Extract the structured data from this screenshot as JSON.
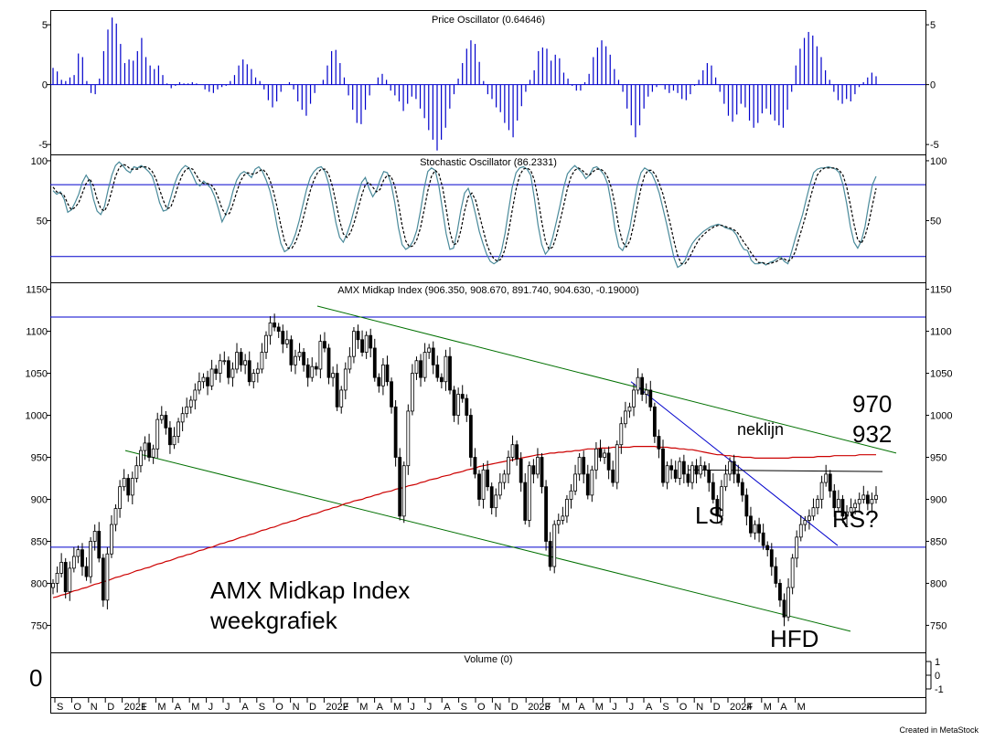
{
  "chart_data": [
    {
      "type": "bar",
      "title": "Price Oscillator (0.64646)",
      "yticks": [
        5,
        0,
        -5
      ],
      "ylim": [
        -5.6,
        6
      ],
      "color": "#0000cc",
      "values": [
        1.4,
        1.1,
        0.4,
        0.3,
        0.6,
        0.8,
        2.6,
        2.3,
        0.3,
        -0.7,
        -0.8,
        0.5,
        2.8,
        4.6,
        5.6,
        5.1,
        3.4,
        1.8,
        2.1,
        2.0,
        2.8,
        3.9,
        2.3,
        1.6,
        1.3,
        1.6,
        0.8,
        0.1,
        -0.3,
        -0.1,
        0.2,
        0.1,
        0.1,
        0.2,
        0.1,
        0.0,
        -0.4,
        -0.6,
        -0.7,
        -0.4,
        -0.2,
        -0.1,
        0.3,
        0.8,
        1.6,
        2.1,
        1.7,
        1.3,
        0.6,
        0.3,
        -0.4,
        -1.3,
        -1.9,
        -1.4,
        -0.6,
        0.0,
        0.2,
        -0.4,
        -1.4,
        -2.1,
        -2.6,
        -1.6,
        -0.7,
        0.0,
        0.4,
        1.6,
        2.8,
        2.9,
        1.8,
        0.6,
        -0.9,
        -2.1,
        -3.2,
        -3.3,
        -2.1,
        -0.9,
        0.0,
        0.6,
        0.9,
        0.4,
        -0.5,
        -0.9,
        -1.4,
        -2.2,
        -1.6,
        -1.0,
        -1.2,
        -2.0,
        -2.8,
        -3.8,
        -4.6,
        -5.5,
        -4.6,
        -3.6,
        -2.0,
        -0.8,
        0.5,
        1.8,
        3.0,
        3.7,
        3.4,
        1.9,
        0.3,
        -0.8,
        -1.2,
        -1.9,
        -2.3,
        -3.2,
        -3.8,
        -4.4,
        -3.0,
        -1.8,
        -0.6,
        0.4,
        1.2,
        2.8,
        3.1,
        3.0,
        2.0,
        2.5,
        2.2,
        1.0,
        0.5,
        -0.1,
        -0.5,
        -0.5,
        0.2,
        0.9,
        2.3,
        3.1,
        3.7,
        3.2,
        2.5,
        1.3,
        0.4,
        -0.6,
        -2.0,
        -3.4,
        -4.4,
        -3.4,
        -2.0,
        -1.0,
        -0.6,
        -0.2,
        0.0,
        -0.4,
        -0.7,
        -0.5,
        -0.7,
        -1.2,
        -1.3,
        -0.8,
        -0.1,
        0.4,
        1.2,
        1.8,
        1.6,
        0.6,
        -0.6,
        -1.6,
        -2.6,
        -3.1,
        -2.5,
        -1.6,
        -1.9,
        -3.0,
        -3.6,
        -3.2,
        -2.4,
        -2.0,
        -2.5,
        -3.0,
        -3.4,
        -3.6,
        -2.1,
        -0.6,
        1.6,
        3.0,
        3.9,
        4.4,
        4.1,
        3.2,
        2.3,
        1.2,
        0.4,
        -0.6,
        -1.3,
        -1.6,
        -1.2,
        -1.4,
        -0.8,
        -0.2,
        0.2,
        0.6,
        1.0,
        0.7
      ]
    },
    {
      "type": "line",
      "title": "Stochastic Oscillator (86.2331)",
      "yticks": [
        100,
        50
      ],
      "ylim": [
        0,
        103
      ],
      "reference_lines": [
        80,
        20
      ],
      "series": [
        {
          "color": "#4a8a9a",
          "dash": false,
          "values": [
            75,
            72,
            74,
            68,
            57,
            59,
            65,
            72,
            82,
            88,
            83,
            68,
            58,
            55,
            62,
            76,
            88,
            96,
            99,
            96,
            92,
            90,
            95,
            94,
            96,
            94,
            91,
            87,
            77,
            65,
            58,
            59,
            69,
            80,
            88,
            93,
            96,
            94,
            88,
            81,
            79,
            83,
            80,
            77,
            70,
            60,
            49,
            55,
            63,
            75,
            84,
            89,
            91,
            89,
            86,
            93,
            95,
            91,
            84,
            75,
            62,
            45,
            31,
            24,
            26,
            31,
            39,
            50,
            63,
            76,
            86,
            91,
            94,
            95,
            91,
            81,
            65,
            48,
            36,
            32,
            39,
            48,
            60,
            72,
            82,
            86,
            77,
            70,
            75,
            84,
            91,
            90,
            81,
            65,
            44,
            30,
            26,
            28,
            33,
            42,
            58,
            77,
            91,
            94,
            92,
            79,
            59,
            39,
            26,
            27,
            41,
            59,
            73,
            77,
            68,
            55,
            41,
            31,
            22,
            16,
            14,
            16,
            24,
            39,
            59,
            78,
            90,
            94,
            95,
            93,
            88,
            69,
            46,
            30,
            22,
            26,
            36,
            49,
            63,
            78,
            89,
            93,
            96,
            93,
            90,
            85,
            88,
            94,
            95,
            92,
            88,
            80,
            63,
            42,
            28,
            25,
            32,
            44,
            62,
            79,
            90,
            94,
            92,
            89,
            82,
            73,
            60,
            47,
            33,
            19,
            11,
            13,
            17,
            25,
            31,
            35,
            38,
            41,
            43,
            45,
            46,
            47,
            46,
            44,
            43,
            42,
            38,
            31,
            26,
            25,
            17,
            14,
            14,
            15,
            13,
            15,
            16,
            18,
            20,
            16,
            14,
            24,
            35,
            45,
            55,
            68,
            80,
            90,
            93,
            94,
            94,
            95,
            94,
            93,
            90,
            80,
            64,
            45,
            32,
            27,
            33,
            45,
            64,
            80,
            87
          ]
        },
        {
          "color": "#000000",
          "dash": true,
          "values": [
            78,
            74,
            73,
            71,
            64,
            59,
            61,
            65,
            73,
            81,
            85,
            79,
            68,
            60,
            58,
            64,
            75,
            87,
            94,
            97,
            96,
            93,
            93,
            93,
            95,
            95,
            94,
            91,
            85,
            76,
            67,
            60,
            61,
            69,
            79,
            87,
            92,
            94,
            93,
            88,
            83,
            81,
            81,
            80,
            76,
            69,
            60,
            55,
            56,
            64,
            74,
            83,
            88,
            90,
            89,
            89,
            91,
            93,
            90,
            84,
            74,
            61,
            46,
            33,
            27,
            27,
            32,
            40,
            51,
            63,
            75,
            84,
            90,
            93,
            93,
            89,
            79,
            65,
            50,
            39,
            36,
            40,
            49,
            60,
            71,
            80,
            82,
            78,
            74,
            76,
            84,
            88,
            87,
            79,
            64,
            46,
            33,
            28,
            29,
            34,
            44,
            59,
            75,
            87,
            92,
            89,
            78,
            60,
            41,
            30,
            31,
            42,
            58,
            70,
            73,
            67,
            55,
            43,
            31,
            23,
            18,
            16,
            18,
            26,
            41,
            59,
            76,
            88,
            93,
            94,
            92,
            84,
            68,
            49,
            33,
            26,
            28,
            37,
            50,
            63,
            77,
            87,
            92,
            94,
            92,
            89,
            88,
            91,
            93,
            93,
            91,
            86,
            77,
            62,
            44,
            32,
            28,
            33,
            46,
            62,
            77,
            88,
            92,
            92,
            88,
            81,
            72,
            60,
            47,
            33,
            21,
            14,
            14,
            18,
            24,
            30,
            35,
            38,
            41,
            43,
            45,
            46,
            46,
            45,
            44,
            43,
            41,
            37,
            32,
            28,
            23,
            19,
            15,
            15,
            14,
            14,
            15,
            16,
            18,
            18,
            16,
            18,
            24,
            35,
            45,
            56,
            68,
            79,
            88,
            92,
            94,
            94,
            94,
            94,
            92,
            88,
            78,
            63,
            47,
            34,
            31,
            37,
            48,
            63,
            77
          ]
        }
      ]
    },
    {
      "type": "candlestick",
      "title": "AMX Midkap Index (906.350, 908.670, 891.740, 904.630, -0.19000)",
      "yticks": [
        1150,
        1100,
        1050,
        1000,
        950,
        900,
        850,
        800,
        750
      ],
      "ylim": [
        720,
        1155
      ],
      "closes": [
        800,
        812,
        825,
        790,
        818,
        832,
        840,
        820,
        808,
        850,
        862,
        830,
        780,
        835,
        870,
        889,
        915,
        925,
        905,
        925,
        940,
        958,
        967,
        950,
        960,
        995,
        1000,
        985,
        965,
        975,
        992,
        1002,
        1010,
        1018,
        1030,
        1040,
        1045,
        1035,
        1055,
        1050,
        1065,
        1065,
        1045,
        1055,
        1075,
        1060,
        1065,
        1040,
        1050,
        1055,
        1075,
        1095,
        1110,
        1105,
        1100,
        1085,
        1090,
        1060,
        1070,
        1075,
        1060,
        1045,
        1058,
        1055,
        1088,
        1080,
        1045,
        1050,
        1010,
        1030,
        1055,
        1070,
        1100,
        1090,
        1075,
        1095,
        1080,
        1045,
        1035,
        1060,
        1040,
        1010,
        950,
        880,
        940,
        1005,
        1050,
        1065,
        1045,
        1075,
        1080,
        1060,
        1045,
        1040,
        1070,
        1030,
        1000,
        1025,
        1020,
        1000,
        950,
        930,
        900,
        935,
        915,
        890,
        905,
        920,
        930,
        950,
        965,
        948,
        920,
        875,
        940,
        930,
        950,
        915,
        850,
        820,
        870,
        875,
        880,
        900,
        910,
        930,
        950,
        930,
        905,
        935,
        960,
        950,
        955,
        935,
        920,
        965,
        990,
        1005,
        1010,
        1030,
        1045,
        1025,
        1030,
        1010,
        975,
        960,
        920,
        940,
        935,
        925,
        945,
        930,
        920,
        940,
        930,
        940,
        935,
        920,
        900,
        880,
        915,
        930,
        945,
        930,
        920,
        905,
        880,
        860,
        870,
        860,
        845,
        840,
        820,
        800,
        780,
        760,
        795,
        830,
        855,
        870,
        875,
        880,
        890,
        900,
        920,
        930,
        910,
        890,
        900,
        880,
        885,
        890,
        895,
        900,
        905,
        895,
        900,
        904.63
      ],
      "moving_average": [
        783,
        784,
        786,
        787,
        789,
        791,
        792,
        794,
        795,
        797,
        799,
        800,
        802,
        803,
        805,
        807,
        808,
        810,
        811,
        813,
        815,
        816,
        818,
        819,
        821,
        823,
        824,
        826,
        827,
        829,
        831,
        832,
        834,
        835,
        837,
        839,
        840,
        842,
        843,
        845,
        847,
        848,
        850,
        851,
        853,
        855,
        856,
        858,
        859,
        861,
        863,
        864,
        866,
        867,
        869,
        871,
        872,
        874,
        875,
        877,
        879,
        880,
        882,
        883,
        885,
        887,
        888,
        890,
        891,
        893,
        895,
        896,
        898,
        899,
        900,
        902,
        903,
        905,
        906,
        908,
        909,
        910,
        912,
        913,
        914,
        916,
        917,
        918,
        920,
        921,
        923,
        924,
        925,
        927,
        928,
        929,
        931,
        932,
        933,
        935,
        936,
        937,
        939,
        940,
        941,
        942,
        943,
        944,
        945,
        946,
        947,
        948,
        949,
        950,
        951,
        952,
        953,
        953,
        954,
        955,
        955,
        956,
        956,
        957,
        957,
        958,
        958,
        959,
        960,
        960,
        960,
        961,
        961,
        961,
        962,
        962,
        962,
        962,
        962,
        963,
        963,
        963,
        963,
        963,
        963,
        962,
        962,
        962,
        961,
        961,
        960,
        960,
        959,
        959,
        958,
        957,
        956,
        955,
        954,
        953,
        953,
        952,
        952,
        951,
        951,
        950,
        950,
        950,
        949,
        949,
        949,
        949,
        949,
        949,
        949,
        949,
        949,
        950,
        950,
        950,
        950,
        950,
        950,
        951,
        951,
        951,
        951,
        952,
        952,
        952,
        952,
        952,
        952,
        953,
        953,
        953,
        953,
        953
      ],
      "horizontal_lines": [
        1117,
        843
      ],
      "annotations": [
        "970",
        "932",
        "neklijn",
        "LS",
        "RS?",
        "HFD"
      ]
    },
    {
      "type": "bar",
      "title": "Volume (0)",
      "yticks": [
        1,
        0,
        -1
      ],
      "left_value": "0"
    }
  ],
  "x_axis_labels": [
    "S",
    "O",
    "N",
    "D",
    "2021",
    "F",
    "M",
    "A",
    "M",
    "J",
    "J",
    "A",
    "S",
    "O",
    "N",
    "D",
    "2022",
    "F",
    "M",
    "A",
    "M",
    "J",
    "J",
    "A",
    "S",
    "O",
    "N",
    "D",
    "2023",
    "F",
    "M",
    "A",
    "M",
    "J",
    "J",
    "A",
    "S",
    "O",
    "N",
    "D",
    "2024",
    "F",
    "M",
    "A",
    "M"
  ],
  "chart_label": {
    "line1": "AMX Midkap Index",
    "line2": "weekgrafiek"
  },
  "credit": "Created in MetaStock"
}
